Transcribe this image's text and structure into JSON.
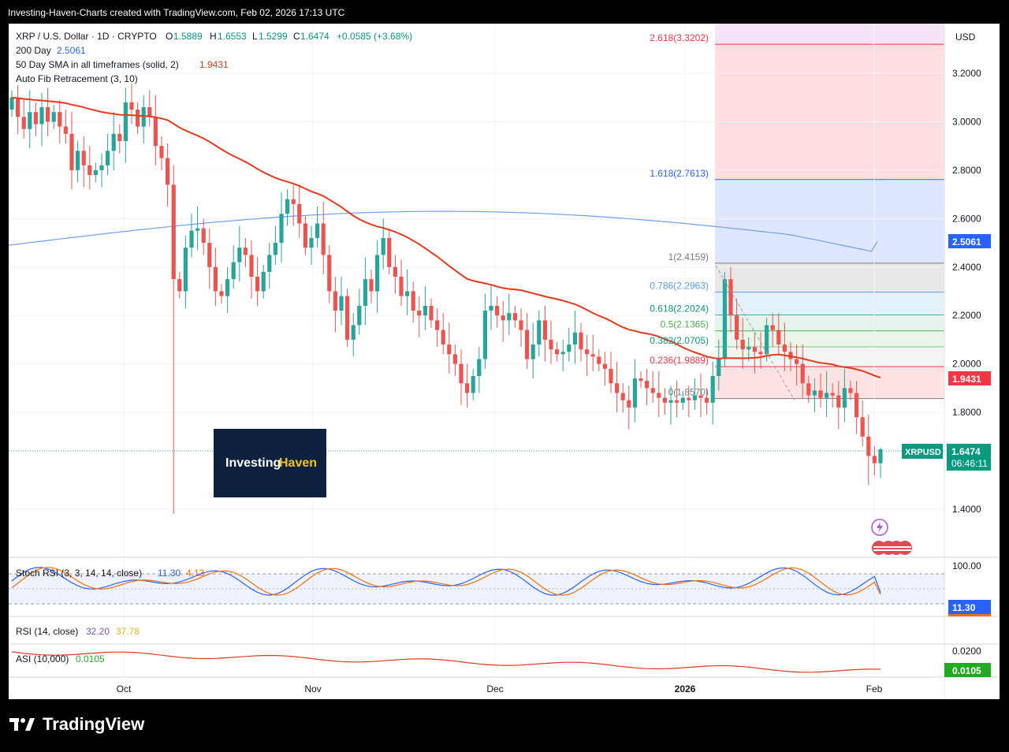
{
  "header": {
    "attribution": "Investing-Haven-Charts created with TradingView.com, Feb 02, 2026 17:13 UTC"
  },
  "legend": {
    "symbol": "XRP / U.S. Dollar · 1D · CRYPTO",
    "open_label": "O",
    "open": "1.5889",
    "high_label": "H",
    "high": "1.6553",
    "low_label": "L",
    "low": "1.5299",
    "close_label": "C",
    "close": "1.6474",
    "change": "+0.0585 (+3.68%)",
    "sma200_label": "200 Day",
    "sma200_value": "2.5061",
    "sma50_label": "50 Day SMA in all timeframes (solid, 2)",
    "sma50_value": "1.9431",
    "fib_label": "Auto Fib Retracement (3, 10)"
  },
  "currency": "USD",
  "watermark": {
    "part1": "Investing",
    "part2": "Haven"
  },
  "price_tag": {
    "symbol": "XRPUSD",
    "price": "1.6474",
    "countdown": "06:46:11"
  },
  "sma200_tag": "2.5061",
  "sma50_tag": "1.9431",
  "stoch": {
    "label": "Stoch RSI (3, 3, 14, 14, close)",
    "k": "11.30",
    "d": "4.13",
    "axis_label": "100.00",
    "tag": "11.30"
  },
  "rsi": {
    "label": "RSI (14, close)",
    "value": "32.20",
    "ma": "37.78"
  },
  "asi": {
    "label": "ASI (10,000)",
    "value": "0.0105",
    "axis_label": "0.0200",
    "tag": "0.0105"
  },
  "footer": {
    "brand": "TradingView"
  },
  "colors": {
    "up": "#26a69a",
    "down": "#ef5350",
    "sma50": "#e53a1c",
    "sma200": "#6e9ff4",
    "stochK": "#2962ff",
    "stochD": "#ff6d00"
  },
  "chart_data": {
    "type": "candlestick",
    "title": "XRP / U.S. Dollar · 1D · CRYPTO",
    "ylim": [
      1.2,
      3.4
    ],
    "y_ticks": [
      "3.2000",
      "3.0000",
      "2.8000",
      "2.6000",
      "2.4000",
      "2.2000",
      "2.0000",
      "1.8000",
      "1.4000"
    ],
    "x_ticks": [
      "Oct",
      "Nov",
      "Dec",
      "2026",
      "Feb"
    ],
    "closes": [
      3.1,
      3.02,
      2.97,
      3.04,
      2.99,
      3.06,
      3.0,
      3.04,
      2.98,
      2.95,
      2.8,
      2.88,
      2.82,
      2.78,
      2.8,
      2.82,
      2.88,
      2.95,
      2.92,
      3.08,
      3.05,
      2.98,
      3.06,
      3.02,
      2.9,
      2.85,
      2.74,
      2.35,
      2.3,
      2.48,
      2.55,
      2.56,
      2.5,
      2.4,
      2.3,
      2.28,
      2.35,
      2.42,
      2.48,
      2.45,
      2.36,
      2.3,
      2.38,
      2.45,
      2.5,
      2.62,
      2.68,
      2.66,
      2.58,
      2.48,
      2.52,
      2.58,
      2.45,
      2.3,
      2.22,
      2.28,
      2.1,
      2.16,
      2.24,
      2.35,
      2.3,
      2.45,
      2.52,
      2.4,
      2.36,
      2.28,
      2.3,
      2.22,
      2.2,
      2.24,
      2.18,
      2.14,
      2.08,
      2.04,
      2.0,
      1.92,
      1.88,
      1.95,
      2.02,
      2.22,
      2.24,
      2.2,
      2.18,
      2.21,
      2.18,
      2.14,
      2.02,
      2.08,
      2.18,
      2.1,
      2.06,
      2.04,
      2.05,
      2.08,
      2.13,
      2.06,
      2.04,
      2.03,
      2.0,
      1.98,
      1.92,
      1.88,
      1.85,
      1.82,
      1.94,
      1.93,
      1.9,
      1.88,
      1.86,
      1.84,
      1.85,
      1.84,
      1.86,
      1.85,
      1.87,
      1.86,
      1.84,
      1.95,
      2.02,
      2.35,
      2.2,
      2.1,
      2.06,
      2.07,
      2.05,
      2.04,
      2.16,
      2.14,
      2.08,
      2.05,
      2.02,
      2.0,
      1.92,
      1.87,
      1.89,
      1.86,
      1.88,
      1.87,
      1.82,
      1.9,
      1.88,
      1.78,
      1.7,
      1.62,
      1.59,
      1.6474
    ],
    "sma50_end": 1.9431,
    "sma200_end": 2.5061,
    "fib_levels": [
      {
        "label": "2.618(3.3202)",
        "price": 3.3202
      },
      {
        "label": "1.618(2.7613)",
        "price": 2.7613
      },
      {
        "label": "1(2.4159)",
        "price": 2.4159
      },
      {
        "label": "0.786(2.2963)",
        "price": 2.2963
      },
      {
        "label": "0.618(2.2024)",
        "price": 2.2024
      },
      {
        "label": "0.5(2.1365)",
        "price": 2.1365
      },
      {
        "label": "0.382(2.0705)",
        "price": 2.0705
      },
      {
        "label": "0.236(1.9889)",
        "price": 1.9889
      },
      {
        "label": "0(1.8570)",
        "price": 1.857
      }
    ]
  }
}
